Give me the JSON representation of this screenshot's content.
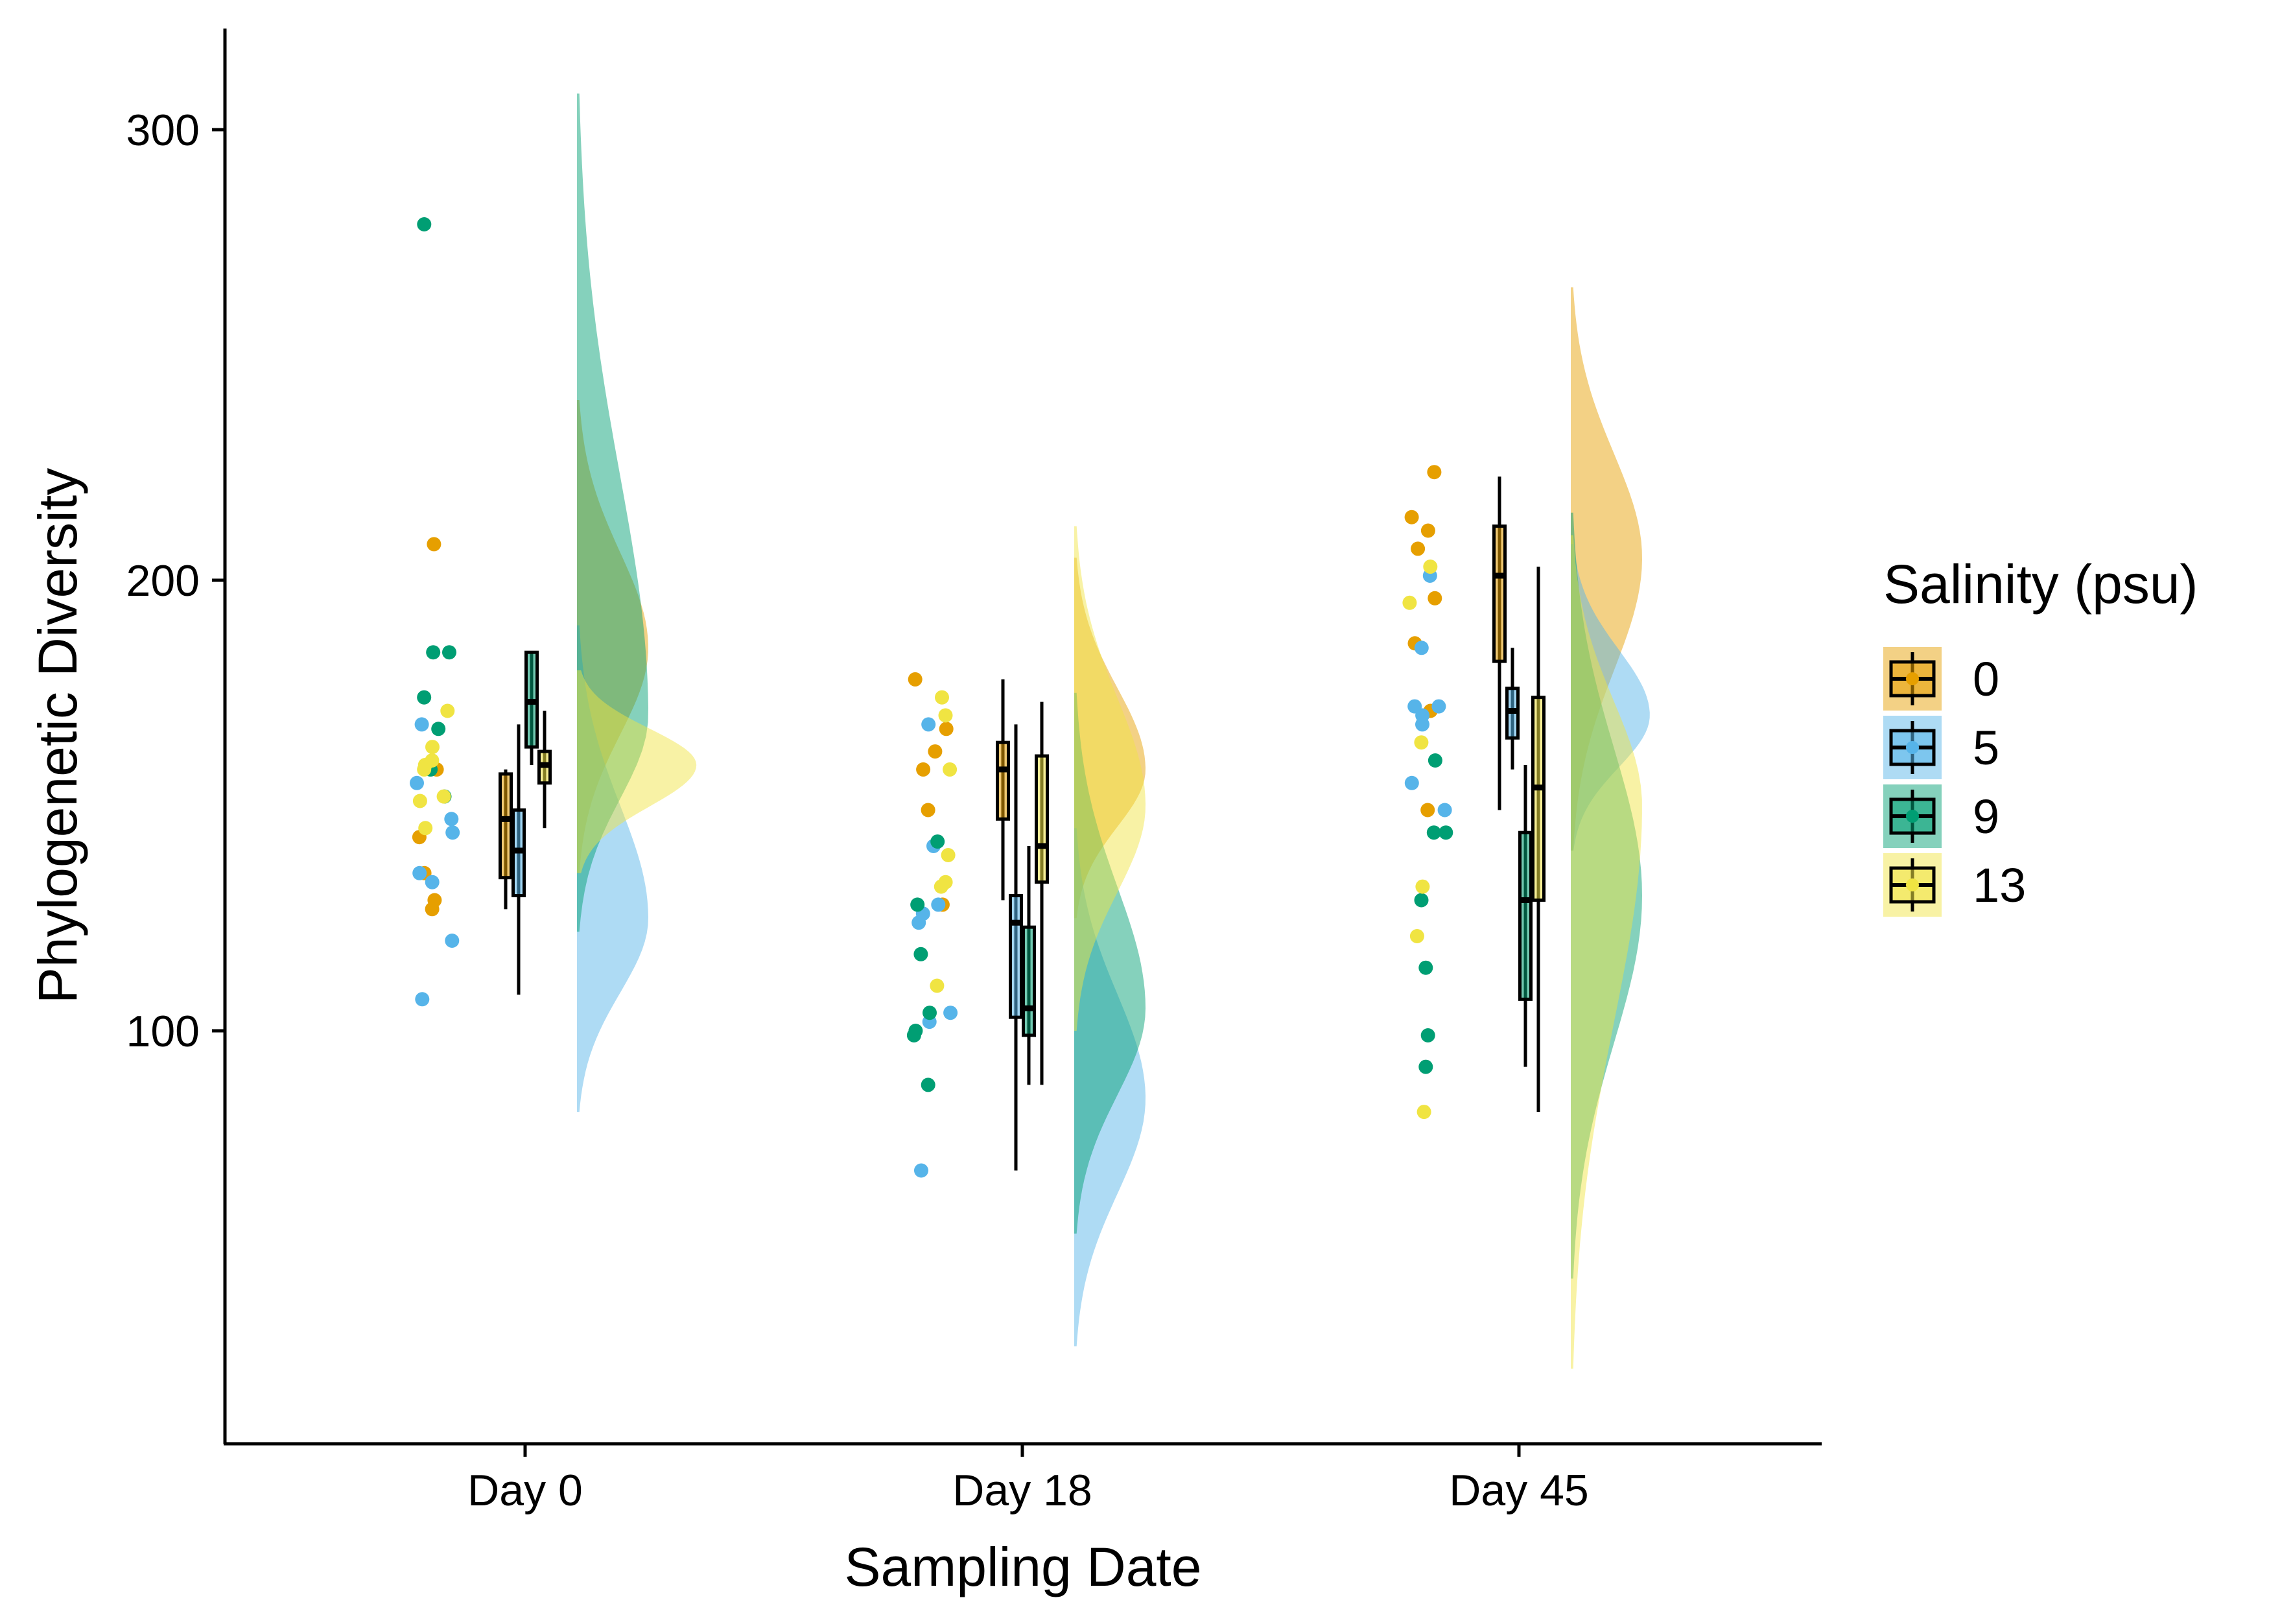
{
  "chart_data": {
    "type": "raincloud",
    "title": "",
    "xlabel": "Sampling Date",
    "ylabel": "Phylogenetic Diversity",
    "categories": [
      "Day 0",
      "Day 18",
      "Day 45"
    ],
    "y_ticks": [
      100,
      200,
      300
    ],
    "ylim": [
      5,
      320
    ],
    "legend_title": "Salinity (psu)",
    "legend_position": "right",
    "grid": false,
    "series": [
      {
        "name": "0",
        "color": "#E69F00",
        "boxes": [
          {
            "category": "Day 0",
            "whisker_low": 127,
            "q1": 134,
            "median": 147,
            "q3": 157,
            "whisker_high": 158
          },
          {
            "category": "Day 18",
            "whisker_low": 129,
            "q1": 147,
            "median": 158,
            "q3": 164,
            "whisker_high": 178
          },
          {
            "category": "Day 45",
            "whisker_low": 149,
            "q1": 182,
            "median": 201,
            "q3": 212,
            "whisker_high": 223
          }
        ],
        "points": [
          {
            "category": "Day 0",
            "values": [
              208,
              158,
              143,
              135,
              127,
              129
            ]
          },
          {
            "category": "Day 18",
            "values": [
              178,
              167,
              162,
              149,
              158,
              128
            ]
          },
          {
            "category": "Day 45",
            "values": [
              224,
              214,
              211,
              207,
              196,
              186,
              171,
              149
            ]
          }
        ],
        "density": [
          {
            "category": "Day 0",
            "range": [
              135,
              240
            ],
            "peak": 185
          },
          {
            "category": "Day 18",
            "range": [
              125,
              205
            ],
            "peak": 158
          },
          {
            "category": "Day 45",
            "range": [
              140,
              265
            ],
            "peak": 205
          }
        ]
      },
      {
        "name": "5",
        "color": "#56B4E9",
        "boxes": [
          {
            "category": "Day 0",
            "whisker_low": 108,
            "q1": 130,
            "median": 140,
            "q3": 149,
            "whisker_high": 168
          },
          {
            "category": "Day 18",
            "whisker_low": 69,
            "q1": 103,
            "median": 124,
            "q3": 130,
            "whisker_high": 168
          },
          {
            "category": "Day 45",
            "whisker_low": 158,
            "q1": 165,
            "median": 171,
            "q3": 176,
            "whisker_high": 185
          }
        ],
        "points": [
          {
            "category": "Day 0",
            "values": [
              168,
              155,
              147,
              144,
              135,
              133,
              120,
              107
            ]
          },
          {
            "category": "Day 18",
            "values": [
              168,
              141,
              128,
              126,
              124,
              104,
              102,
              69
            ]
          },
          {
            "category": "Day 45",
            "values": [
              201,
              185,
              172,
              172,
              170,
              168,
              155,
              149
            ]
          }
        ],
        "density": [
          {
            "category": "Day 0",
            "range": [
              82,
              190
            ],
            "peak": 125
          },
          {
            "category": "Day 18",
            "range": [
              30,
              145
            ],
            "peak": 85
          },
          {
            "category": "Day 45",
            "range": [
              140,
              208
            ],
            "peak": 170
          }
        ]
      },
      {
        "name": "9",
        "color": "#009E73",
        "boxes": [
          {
            "category": "Day 0",
            "whisker_low": 159,
            "q1": 163,
            "median": 173,
            "q3": 184,
            "whisker_high": 184
          },
          {
            "category": "Day 18",
            "whisker_low": 88,
            "q1": 99,
            "median": 105,
            "q3": 123,
            "whisker_high": 141
          },
          {
            "category": "Day 45",
            "whisker_low": 92,
            "q1": 107,
            "median": 129,
            "q3": 144,
            "whisker_high": 159
          }
        ],
        "points": [
          {
            "category": "Day 0",
            "values": [
              279,
              184,
              184,
              174,
              167,
              158,
              152
            ]
          },
          {
            "category": "Day 18",
            "values": [
              142,
              128,
              117,
              104,
              100,
              99,
              88
            ]
          },
          {
            "category": "Day 45",
            "values": [
              160,
              144,
              144,
              129,
              114,
              99,
              92
            ]
          }
        ],
        "density": [
          {
            "category": "Day 0",
            "range": [
              122,
              308
            ],
            "peak": 170
          },
          {
            "category": "Day 18",
            "range": [
              55,
              175
            ],
            "peak": 105
          },
          {
            "category": "Day 45",
            "range": [
              45,
              215
            ],
            "peak": 130
          }
        ]
      },
      {
        "name": "13",
        "color": "#F0E442",
        "boxes": [
          {
            "category": "Day 0",
            "whisker_low": 145,
            "q1": 155,
            "median": 159,
            "q3": 162,
            "whisker_high": 171
          },
          {
            "category": "Day 18",
            "whisker_low": 88,
            "q1": 133,
            "median": 141,
            "q3": 161,
            "whisker_high": 173
          },
          {
            "category": "Day 45",
            "whisker_low": 82,
            "q1": 129,
            "median": 154,
            "q3": 174,
            "whisker_high": 203
          }
        ],
        "points": [
          {
            "category": "Day 0",
            "values": [
              171,
              163,
              160,
              159,
              158,
              152,
              151,
              145
            ]
          },
          {
            "category": "Day 18",
            "values": [
              174,
              170,
              158,
              139,
              133,
              132,
              110
            ]
          },
          {
            "category": "Day 45",
            "values": [
              203,
              195,
              164,
              132,
              121,
              82
            ]
          }
        ],
        "density": [
          {
            "category": "Day 0",
            "range": [
              135,
              180
            ],
            "peak": 159
          },
          {
            "category": "Day 18",
            "range": [
              100,
              212
            ],
            "peak": 150
          },
          {
            "category": "Day 45",
            "range": [
              25,
              210
            ],
            "peak": 150
          }
        ]
      }
    ]
  }
}
